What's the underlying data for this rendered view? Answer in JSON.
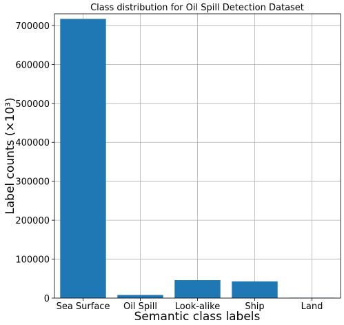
{
  "chart_data": {
    "type": "bar",
    "title": "Class distribution for Oil Spill Detection Dataset",
    "xlabel": "Semantic class labels",
    "ylabel": "Label counts (×10³)",
    "categories": [
      "Sea Surface",
      "Oil Spill",
      "Look-alike",
      "Ship",
      "Land"
    ],
    "values": [
      717000,
      8000,
      46000,
      43000,
      1000
    ],
    "ylim": [
      0,
      730000
    ],
    "yticks": [
      0,
      100000,
      200000,
      300000,
      400000,
      500000,
      600000,
      700000
    ],
    "bar_color": "#1f77b4",
    "grid": true
  }
}
